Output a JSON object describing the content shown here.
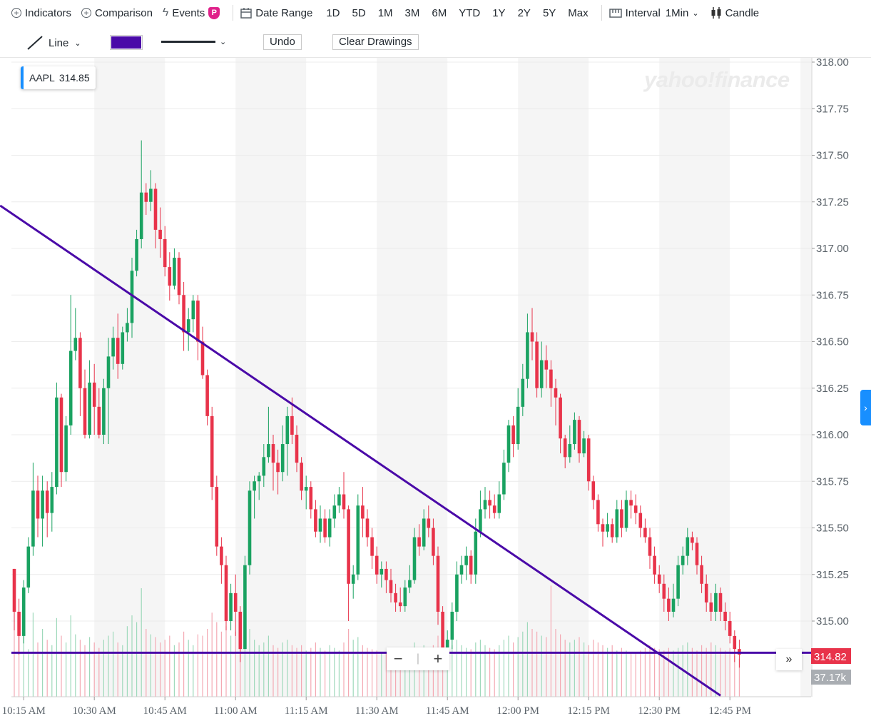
{
  "toolbar": {
    "indicators": "Indicators",
    "comparison": "Comparison",
    "events": "Events",
    "events_badge": "P",
    "date_range": "Date Range",
    "ranges": [
      "1D",
      "5D",
      "1M",
      "3M",
      "6M",
      "YTD",
      "1Y",
      "2Y",
      "5Y",
      "Max"
    ],
    "interval_label": "Interval",
    "interval_value": "1Min",
    "chart_type": "Candle"
  },
  "drawing": {
    "tool": "Line",
    "color": "#4a0aa8",
    "undo": "Undo",
    "clear": "Clear Drawings"
  },
  "legend": {
    "symbol": "AAPL",
    "value": "314.85"
  },
  "logo": "yahoo!finance",
  "zoom": {
    "minus": "−",
    "plus": "+"
  },
  "chart_data": {
    "type": "candlestick",
    "symbol": "AAPL",
    "interval": "1Min",
    "ylim": [
      314.6,
      318.08
    ],
    "y_ticks": [
      "318.00",
      "317.75",
      "317.50",
      "317.25",
      "317.00",
      "316.75",
      "316.50",
      "316.25",
      "316.00",
      "315.75",
      "315.50",
      "315.25",
      "315.00"
    ],
    "x_ticks": [
      "10:15 AM",
      "10:30 AM",
      "10:45 AM",
      "11:00 AM",
      "11:15 AM",
      "11:30 AM",
      "11:45 AM",
      "12:00 PM",
      "12:15 PM",
      "12:30 PM",
      "12:45 PM"
    ],
    "last_price": "314.82",
    "last_volume": "37.17k",
    "candles": [
      [
        315.28,
        315.05,
        315.28,
        314.95
      ],
      [
        315.05,
        314.92,
        315.12,
        314.82
      ],
      [
        314.92,
        315.18,
        315.22,
        314.88
      ],
      [
        315.18,
        315.4,
        315.45,
        315.15
      ],
      [
        315.4,
        315.7,
        315.85,
        315.35
      ],
      [
        315.7,
        315.55,
        315.78,
        315.45
      ],
      [
        315.55,
        315.7,
        315.78,
        315.4
      ],
      [
        315.7,
        315.58,
        315.75,
        315.45
      ],
      [
        315.58,
        315.72,
        315.8,
        315.48
      ],
      [
        315.72,
        316.2,
        316.28,
        315.68
      ],
      [
        316.2,
        315.8,
        316.22,
        315.72
      ],
      [
        315.8,
        316.05,
        316.1,
        315.75
      ],
      [
        316.05,
        316.45,
        316.75,
        316.0
      ],
      [
        316.45,
        316.52,
        316.68,
        316.4
      ],
      [
        316.52,
        316.25,
        316.55,
        316.1
      ],
      [
        316.25,
        316.0,
        316.35,
        315.98
      ],
      [
        316.0,
        316.28,
        316.4,
        315.98
      ],
      [
        316.28,
        316.15,
        316.38,
        316.0
      ],
      [
        316.15,
        316.0,
        316.25,
        315.98
      ],
      [
        316.0,
        316.25,
        316.3,
        315.95
      ],
      [
        316.25,
        316.42,
        316.52,
        315.95
      ],
      [
        316.42,
        316.52,
        316.58,
        316.35
      ],
      [
        316.52,
        316.38,
        316.65,
        316.3
      ],
      [
        316.38,
        316.55,
        316.58,
        316.35
      ],
      [
        316.55,
        316.6,
        316.68,
        316.5
      ],
      [
        316.6,
        316.88,
        316.95,
        316.52
      ],
      [
        316.88,
        317.05,
        317.1,
        316.85
      ],
      [
        317.05,
        317.3,
        317.58,
        317.0
      ],
      [
        317.3,
        317.25,
        317.35,
        317.18
      ],
      [
        317.25,
        317.32,
        317.42,
        317.2
      ],
      [
        317.32,
        317.1,
        317.35,
        317.0
      ],
      [
        317.1,
        317.05,
        317.22,
        316.95
      ],
      [
        317.05,
        316.9,
        317.12,
        316.85
      ],
      [
        316.9,
        316.8,
        316.98,
        316.72
      ],
      [
        316.8,
        316.95,
        317.0,
        316.78
      ],
      [
        316.95,
        316.75,
        316.98,
        316.7
      ],
      [
        316.75,
        316.55,
        316.82,
        316.45
      ],
      [
        316.55,
        316.62,
        316.68,
        316.45
      ],
      [
        316.62,
        316.72,
        316.75,
        316.55
      ],
      [
        316.72,
        316.5,
        316.75,
        316.4
      ],
      [
        316.5,
        316.32,
        316.58,
        316.3
      ],
      [
        316.32,
        316.1,
        316.35,
        316.05
      ],
      [
        316.1,
        315.72,
        316.15,
        315.65
      ],
      [
        315.72,
        315.4,
        315.78,
        315.35
      ],
      [
        315.4,
        315.3,
        315.45,
        315.2
      ],
      [
        315.3,
        315.0,
        315.35,
        314.95
      ],
      [
        315.0,
        315.15,
        315.2,
        314.95
      ],
      [
        315.15,
        315.05,
        315.25,
        314.92
      ],
      [
        315.05,
        314.85,
        315.08,
        314.78
      ],
      [
        314.85,
        315.3,
        315.35,
        314.85
      ],
      [
        315.3,
        315.7,
        315.75,
        315.25
      ],
      [
        315.7,
        315.75,
        315.78,
        315.55
      ],
      [
        315.75,
        315.78,
        315.8,
        315.65
      ],
      [
        315.78,
        315.88,
        315.95,
        315.72
      ],
      [
        315.88,
        315.95,
        316.15,
        315.85
      ],
      [
        315.95,
        315.85,
        316.0,
        315.7
      ],
      [
        315.85,
        315.8,
        315.92,
        315.68
      ],
      [
        315.8,
        315.95,
        316.05,
        315.75
      ],
      [
        315.95,
        316.1,
        316.15,
        315.78
      ],
      [
        316.1,
        316.0,
        316.2,
        315.95
      ],
      [
        316.0,
        315.85,
        316.05,
        315.8
      ],
      [
        315.85,
        315.7,
        315.88,
        315.65
      ],
      [
        315.7,
        315.72,
        315.78,
        315.6
      ],
      [
        315.72,
        315.6,
        315.75,
        315.55
      ],
      [
        315.6,
        315.48,
        315.65,
        315.45
      ],
      [
        315.48,
        315.55,
        315.62,
        315.42
      ],
      [
        315.55,
        315.45,
        315.6,
        315.42
      ],
      [
        315.45,
        315.55,
        315.6,
        315.4
      ],
      [
        315.55,
        315.62,
        315.68,
        315.5
      ],
      [
        315.62,
        315.68,
        315.72,
        315.58
      ],
      [
        315.68,
        315.6,
        315.8,
        315.55
      ],
      [
        315.6,
        315.2,
        315.62,
        315.0
      ],
      [
        315.2,
        315.25,
        315.3,
        315.12
      ],
      [
        315.25,
        315.62,
        315.68,
        315.22
      ],
      [
        315.62,
        315.55,
        315.72,
        315.45
      ],
      [
        315.55,
        315.45,
        315.6,
        315.4
      ],
      [
        315.45,
        315.35,
        315.5,
        315.28
      ],
      [
        315.35,
        315.25,
        315.4,
        315.2
      ],
      [
        315.25,
        315.28,
        315.32,
        315.18
      ],
      [
        315.28,
        315.22,
        315.32,
        315.15
      ],
      [
        315.22,
        315.15,
        315.28,
        315.1
      ],
      [
        315.15,
        315.1,
        315.2,
        315.05
      ],
      [
        315.1,
        315.08,
        315.18,
        315.05
      ],
      [
        315.08,
        315.18,
        315.22,
        315.05
      ],
      [
        315.18,
        315.22,
        315.3,
        315.15
      ],
      [
        315.22,
        315.45,
        315.5,
        315.2
      ],
      [
        315.45,
        315.4,
        315.52,
        315.35
      ],
      [
        315.4,
        315.55,
        315.6,
        315.38
      ],
      [
        315.55,
        315.5,
        315.62,
        315.45
      ],
      [
        315.5,
        315.35,
        315.55,
        315.3
      ],
      [
        315.35,
        315.05,
        315.4,
        314.98
      ],
      [
        315.05,
        314.85,
        315.08,
        314.8
      ],
      [
        314.85,
        314.9,
        314.95,
        314.82
      ],
      [
        314.9,
        315.05,
        315.1,
        314.85
      ],
      [
        315.05,
        315.25,
        315.32,
        315.0
      ],
      [
        315.25,
        315.3,
        315.35,
        315.2
      ],
      [
        315.3,
        315.35,
        315.4,
        315.22
      ],
      [
        315.35,
        315.25,
        315.38,
        315.2
      ],
      [
        315.25,
        315.48,
        315.55,
        315.2
      ],
      [
        315.48,
        315.6,
        315.7,
        315.45
      ],
      [
        315.6,
        315.65,
        315.72,
        315.55
      ],
      [
        315.65,
        315.62,
        315.7,
        315.55
      ],
      [
        315.62,
        315.58,
        315.68,
        315.55
      ],
      [
        315.58,
        315.68,
        315.75,
        315.55
      ],
      [
        315.68,
        315.85,
        315.92,
        315.65
      ],
      [
        315.85,
        316.05,
        316.08,
        315.8
      ],
      [
        316.05,
        315.95,
        316.1,
        315.88
      ],
      [
        315.95,
        316.15,
        316.25,
        315.92
      ],
      [
        316.15,
        316.3,
        316.38,
        316.1
      ],
      [
        316.3,
        316.55,
        316.65,
        316.25
      ],
      [
        316.55,
        316.5,
        316.68,
        316.4
      ],
      [
        316.5,
        316.25,
        316.55,
        316.2
      ],
      [
        316.25,
        316.4,
        316.5,
        316.2
      ],
      [
        316.4,
        316.35,
        316.48,
        316.25
      ],
      [
        316.35,
        316.25,
        316.4,
        316.15
      ],
      [
        316.25,
        316.2,
        316.3,
        316.05
      ],
      [
        316.2,
        315.98,
        316.22,
        315.9
      ],
      [
        315.98,
        315.88,
        316.0,
        315.82
      ],
      [
        315.88,
        315.95,
        316.05,
        315.85
      ],
      [
        315.95,
        316.08,
        316.12,
        315.92
      ],
      [
        316.08,
        315.9,
        316.1,
        315.85
      ],
      [
        315.9,
        315.98,
        316.02,
        315.88
      ],
      [
        315.98,
        315.75,
        316.0,
        315.7
      ],
      [
        315.75,
        315.65,
        315.78,
        315.6
      ],
      [
        315.65,
        315.52,
        315.68,
        315.48
      ],
      [
        315.52,
        315.48,
        315.55,
        315.4
      ],
      [
        315.48,
        315.52,
        315.58,
        315.45
      ],
      [
        315.52,
        315.45,
        315.55,
        315.42
      ],
      [
        315.45,
        315.6,
        315.65,
        315.42
      ],
      [
        315.6,
        315.5,
        315.65,
        315.45
      ],
      [
        315.5,
        315.65,
        315.7,
        315.48
      ],
      [
        315.65,
        315.62,
        315.7,
        315.55
      ],
      [
        315.62,
        315.58,
        315.68,
        315.52
      ],
      [
        315.58,
        315.5,
        315.62,
        315.45
      ],
      [
        315.5,
        315.45,
        315.55,
        315.42
      ],
      [
        315.45,
        315.35,
        315.5,
        315.28
      ],
      [
        315.35,
        315.25,
        315.4,
        315.2
      ],
      [
        315.25,
        315.2,
        315.3,
        315.15
      ],
      [
        315.2,
        315.12,
        315.25,
        315.05
      ],
      [
        315.12,
        315.05,
        315.18,
        315.0
      ],
      [
        315.05,
        315.12,
        315.2,
        315.02
      ],
      [
        315.12,
        315.3,
        315.35,
        315.08
      ],
      [
        315.3,
        315.35,
        315.4,
        315.25
      ],
      [
        315.35,
        315.45,
        315.5,
        315.3
      ],
      [
        315.45,
        315.42,
        315.48,
        315.38
      ],
      [
        315.42,
        315.3,
        315.45,
        315.25
      ],
      [
        315.3,
        315.2,
        315.35,
        315.15
      ],
      [
        315.2,
        315.1,
        315.25,
        315.05
      ],
      [
        315.1,
        315.05,
        315.15,
        315.0
      ],
      [
        315.05,
        315.15,
        315.2,
        315.0
      ],
      [
        315.15,
        315.05,
        315.18,
        315.0
      ],
      [
        315.05,
        315.0,
        315.1,
        314.95
      ],
      [
        315.0,
        314.92,
        315.05,
        314.88
      ],
      [
        314.92,
        314.85,
        314.95,
        314.78
      ],
      [
        314.85,
        314.82,
        314.9,
        314.75
      ]
    ],
    "volumes": [
      0.82,
      0.55,
      0.45,
      0.35,
      0.62,
      0.4,
      0.5,
      0.42,
      0.38,
      0.58,
      0.45,
      0.4,
      0.6,
      0.46,
      0.42,
      0.38,
      0.44,
      0.4,
      0.36,
      0.42,
      0.45,
      0.48,
      0.4,
      0.38,
      0.52,
      0.6,
      0.55,
      0.8,
      0.5,
      0.46,
      0.44,
      0.4,
      0.42,
      0.45,
      0.38,
      0.4,
      0.48,
      0.42,
      0.38,
      0.46,
      0.45,
      0.5,
      0.62,
      0.55,
      0.48,
      0.52,
      0.45,
      0.48,
      0.44,
      0.55,
      0.5,
      0.42,
      0.38,
      0.4,
      0.45,
      0.38,
      0.36,
      0.4,
      0.42,
      0.38,
      0.36,
      0.38,
      0.34,
      0.36,
      0.4,
      0.36,
      0.34,
      0.38,
      0.36,
      0.34,
      0.4,
      0.5,
      0.42,
      0.44,
      0.38,
      0.36,
      0.35,
      0.34,
      0.32,
      0.33,
      0.3,
      0.32,
      0.3,
      0.34,
      0.36,
      0.4,
      0.36,
      0.38,
      0.35,
      0.38,
      0.45,
      0.48,
      0.4,
      0.38,
      0.42,
      0.38,
      0.36,
      0.35,
      0.4,
      0.42,
      0.38,
      0.36,
      0.35,
      0.38,
      0.42,
      0.45,
      0.4,
      0.44,
      0.48,
      0.55,
      0.5,
      0.48,
      0.45,
      0.44,
      0.82,
      0.5,
      0.46,
      0.42,
      0.4,
      0.42,
      0.44,
      0.4,
      0.38,
      0.42,
      0.4,
      0.38,
      0.36,
      0.38,
      0.34,
      0.36,
      0.34,
      0.33,
      0.32,
      0.34,
      0.36,
      0.38,
      0.36,
      0.35,
      0.34,
      0.36,
      0.34,
      0.36,
      0.38,
      0.4,
      0.36,
      0.34,
      0.38,
      0.36,
      0.4,
      0.38,
      0.36,
      0.34,
      0.36,
      0.3,
      0.28
    ],
    "drawings": [
      {
        "type": "trendline",
        "from": [
          "10:10 AM",
          317.23
        ],
        "to": [
          "12:43 PM",
          314.6
        ]
      },
      {
        "type": "horizontal",
        "value": 314.83
      }
    ]
  }
}
